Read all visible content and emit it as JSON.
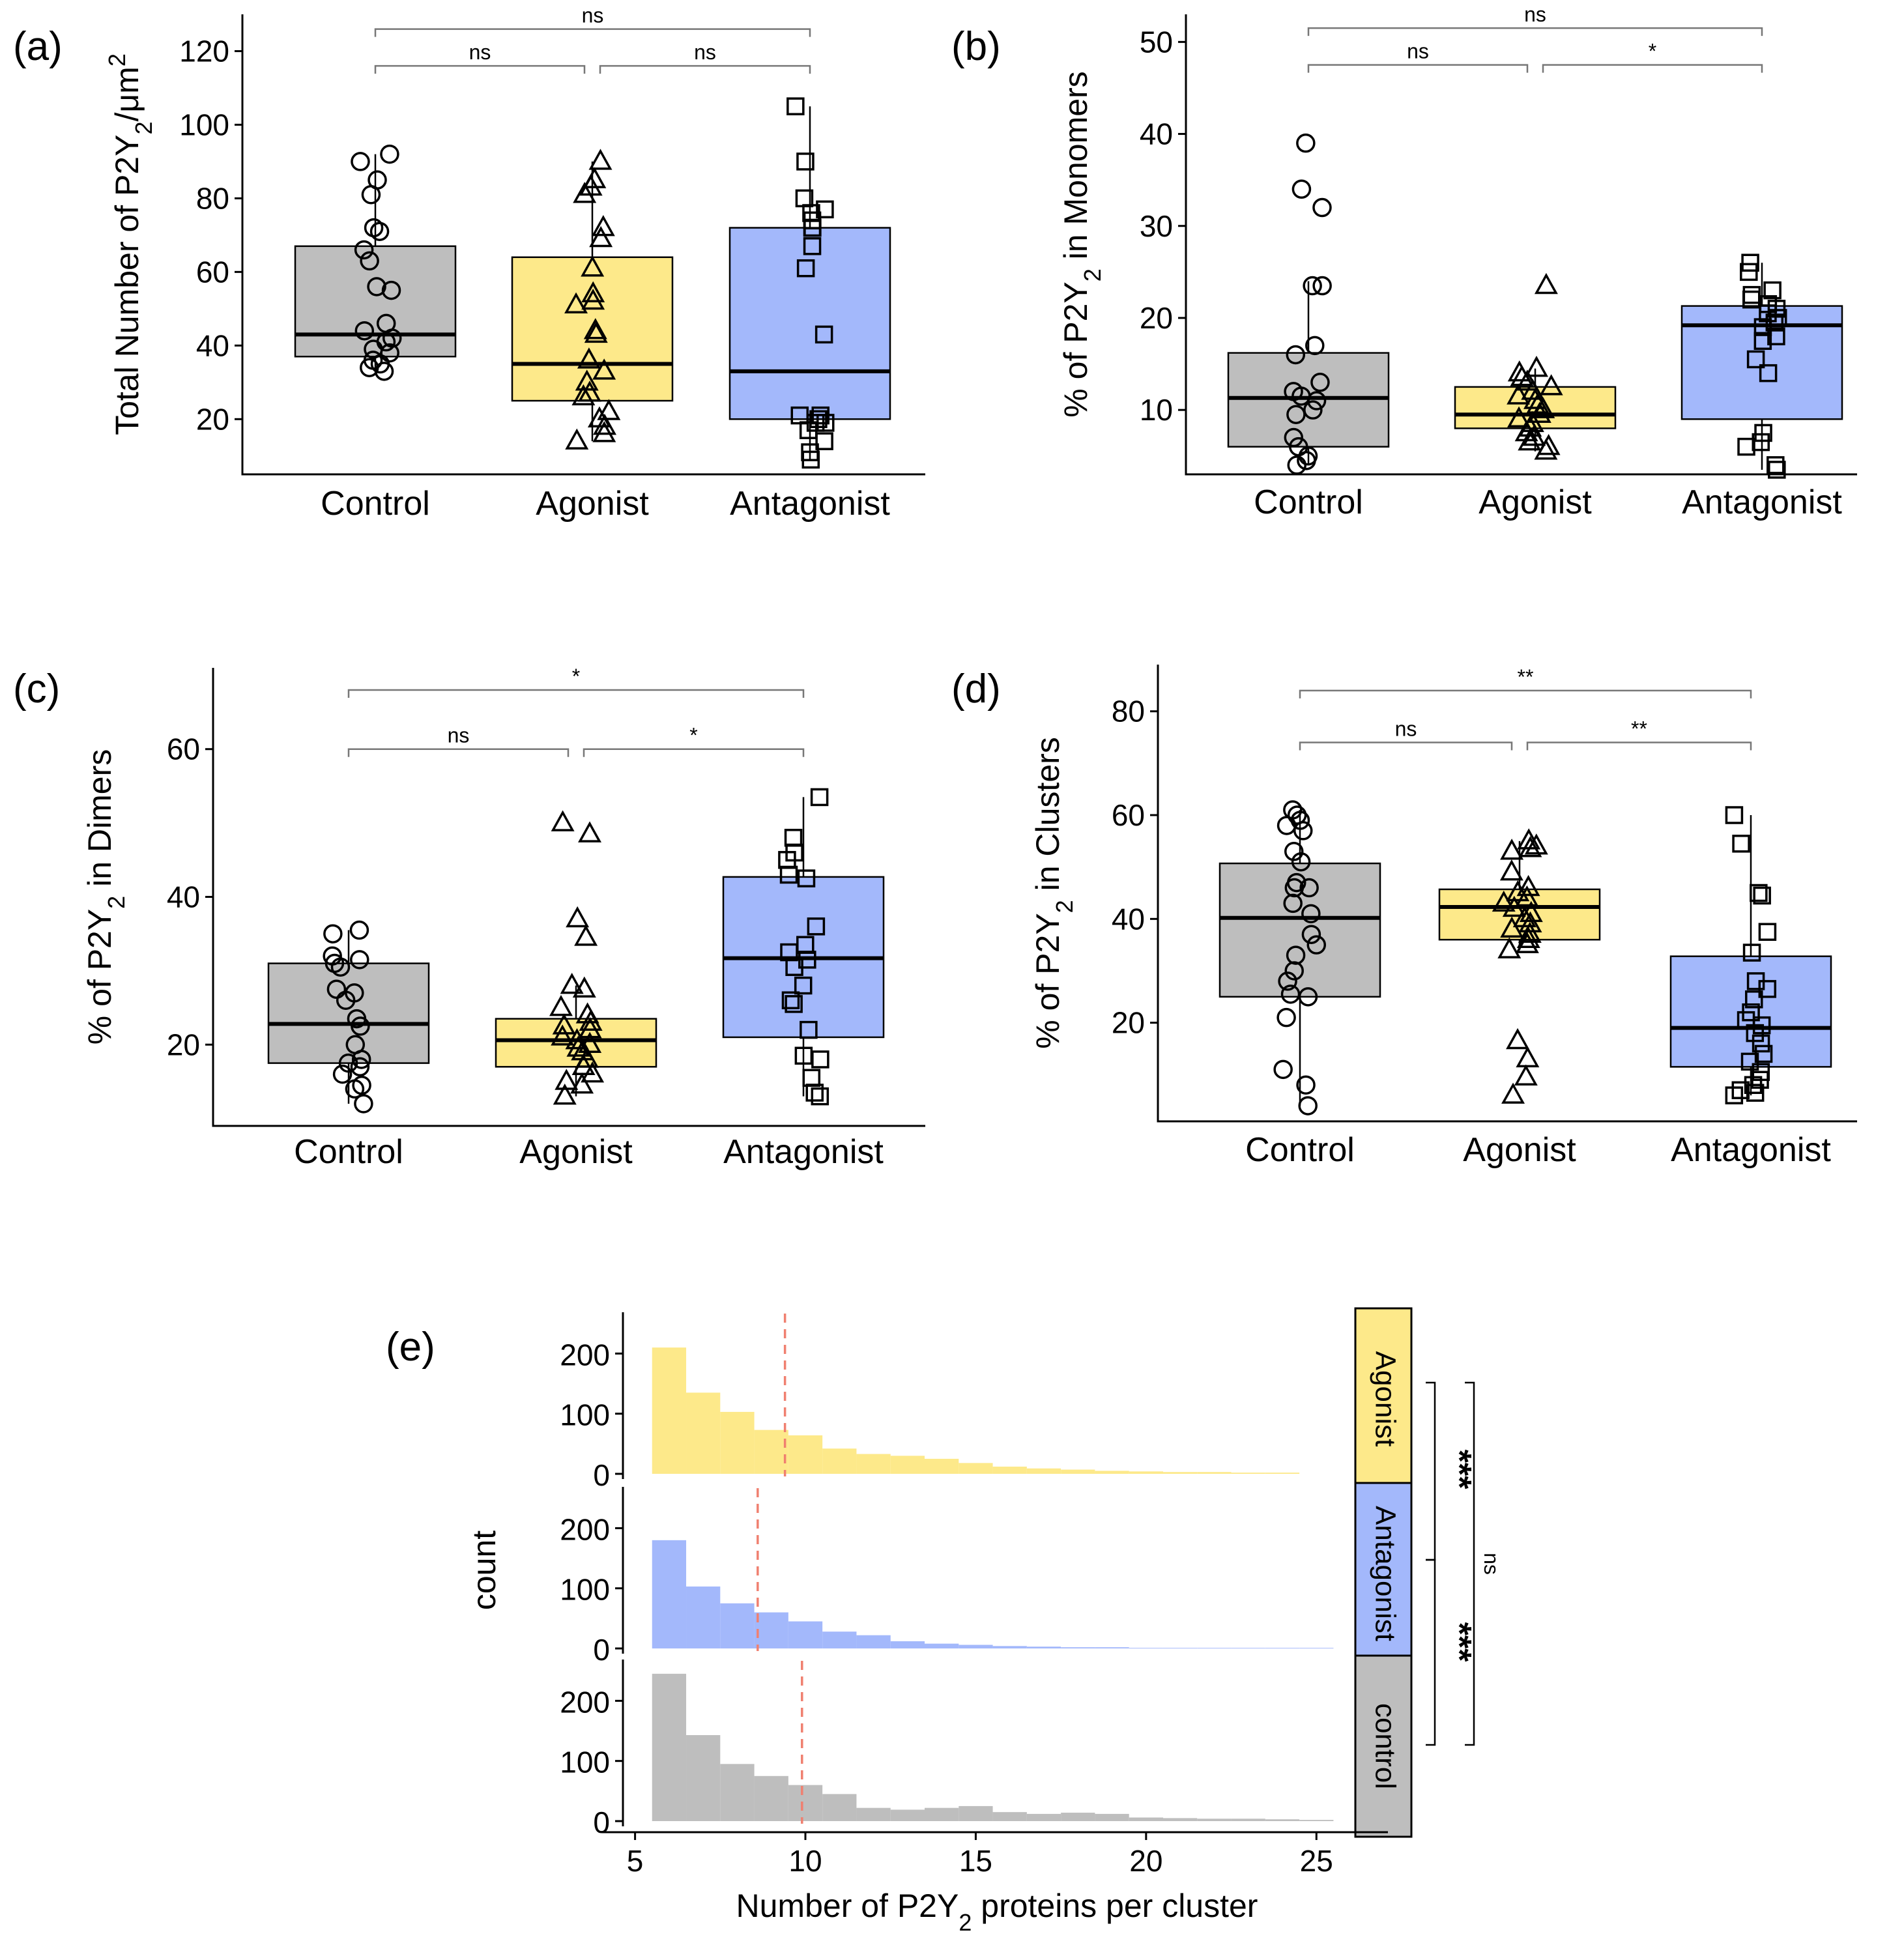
{
  "colors": {
    "control": "#bebebe",
    "agonist": "#fde98a",
    "antagonist": "#a3b8fb",
    "mean_line": "#f08070",
    "bracket": "#777777"
  },
  "boxpanels": [
    {
      "id": "a",
      "letter": "(a)",
      "ylabel": "Total Number of P2Y₂/μm²",
      "ylim": [
        5,
        130
      ],
      "yticks": [
        20,
        40,
        60,
        80,
        100,
        120
      ],
      "categories": [
        "Control",
        "Agonist",
        "Antagonist"
      ],
      "groups": [
        {
          "name": "Control",
          "color": "control",
          "shape": "circle",
          "stats": {
            "min": 33,
            "q1": 37,
            "median": 43,
            "q3": 67,
            "max": 92
          },
          "points": [
            92,
            90,
            85,
            81,
            72,
            71,
            66,
            63,
            56,
            55,
            46,
            44,
            42,
            41,
            39,
            38,
            36,
            35,
            34,
            33
          ]
        },
        {
          "name": "Agonist",
          "color": "agonist",
          "shape": "triangle",
          "stats": {
            "min": 14,
            "q1": 25,
            "median": 35,
            "q3": 64,
            "max": 90
          },
          "points": [
            90,
            85,
            83,
            81,
            72,
            69,
            61,
            54,
            52,
            51,
            44,
            43,
            36,
            33,
            30,
            27,
            26,
            22,
            20,
            18,
            16,
            14
          ]
        },
        {
          "name": "Antagonist",
          "color": "antagonist",
          "shape": "square",
          "stats": {
            "min": 9,
            "q1": 20,
            "median": 33,
            "q3": 72,
            "max": 105
          },
          "points": [
            105,
            90,
            80,
            77,
            76,
            74,
            72,
            72,
            67,
            61,
            43,
            21,
            21,
            20,
            19,
            19,
            17,
            14,
            11,
            9
          ]
        }
      ],
      "brackets": [
        {
          "from": 0,
          "to": 2,
          "label": "ns",
          "y": 126
        },
        {
          "from": 0,
          "to": 1,
          "label": "ns",
          "y": 116
        },
        {
          "from": 1,
          "to": 2,
          "label": "ns",
          "y": 116
        }
      ]
    },
    {
      "id": "b",
      "letter": "(b)",
      "ylabel": "% of P2Y₂ in Monomers",
      "ylim": [
        3,
        53
      ],
      "yticks": [
        10,
        20,
        30,
        40,
        50
      ],
      "categories": [
        "Control",
        "Agonist",
        "Antagonist"
      ],
      "groups": [
        {
          "name": "Control",
          "color": "control",
          "shape": "circle",
          "stats": {
            "min": 4,
            "q1": 6,
            "median": 11.3,
            "q3": 16.2,
            "max": 24
          },
          "points": [
            39,
            34,
            32,
            23.5,
            23.5,
            17,
            16,
            13,
            12,
            11.5,
            11,
            10,
            9.5,
            7,
            6,
            5,
            4.5,
            4
          ]
        },
        {
          "name": "Agonist",
          "color": "agonist",
          "shape": "triangle",
          "stats": {
            "min": 5.5,
            "q1": 8,
            "median": 9.5,
            "q3": 12.5,
            "max": 14.5
          },
          "points": [
            23.5,
            14.5,
            14,
            13.5,
            13,
            12.5,
            12,
            11.5,
            11,
            10.5,
            10,
            9.5,
            9,
            8.5,
            8,
            7.5,
            7,
            6.5,
            6,
            5.5
          ]
        },
        {
          "name": "Antagonist",
          "color": "antagonist",
          "shape": "square",
          "stats": {
            "min": 3.5,
            "q1": 9,
            "median": 19.2,
            "q3": 21.3,
            "max": 26
          },
          "points": [
            26,
            25,
            23,
            22.5,
            22,
            21.5,
            21,
            20.5,
            20,
            19.5,
            19,
            18,
            17.5,
            15.5,
            14,
            7.5,
            6.5,
            6,
            4,
            3.5
          ]
        }
      ],
      "brackets": [
        {
          "from": 0,
          "to": 2,
          "label": "ns",
          "y": 51.5
        },
        {
          "from": 0,
          "to": 1,
          "label": "ns",
          "y": 47.5
        },
        {
          "from": 1,
          "to": 2,
          "label": "*",
          "y": 47.5
        }
      ]
    },
    {
      "id": "c",
      "letter": "(c)",
      "ylabel": "% of P2Y₂ in Dimers",
      "ylim": [
        9,
        71
      ],
      "yticks": [
        20,
        40,
        60
      ],
      "categories": [
        "Control",
        "Agonist",
        "Antagonist"
      ],
      "groups": [
        {
          "name": "Control",
          "color": "control",
          "shape": "circle",
          "stats": {
            "min": 12,
            "q1": 17.5,
            "median": 22.8,
            "q3": 31,
            "max": 35.5
          },
          "points": [
            35.5,
            35,
            32,
            31.5,
            31,
            30.5,
            27.5,
            27,
            26,
            23.5,
            22.5,
            20,
            18,
            17.5,
            17,
            16,
            14.5,
            14,
            12
          ]
        },
        {
          "name": "Agonist",
          "color": "agonist",
          "shape": "triangle",
          "stats": {
            "min": 13,
            "q1": 17,
            "median": 20.6,
            "q3": 23.5,
            "max": 28
          },
          "points": [
            50,
            48.5,
            37,
            34.5,
            28,
            27.5,
            25,
            24,
            23,
            22.5,
            22,
            21,
            20.5,
            20,
            19.5,
            19,
            18,
            17,
            16,
            15,
            14.5,
            13
          ]
        },
        {
          "name": "Antagonist",
          "color": "antagonist",
          "shape": "square",
          "stats": {
            "min": 13,
            "q1": 21,
            "median": 31.7,
            "q3": 42.7,
            "max": 53.5
          },
          "points": [
            53.5,
            48,
            46,
            45,
            43,
            42.5,
            36,
            33.5,
            32.5,
            31.5,
            30.5,
            28,
            26,
            25.5,
            22,
            18.5,
            18,
            15.5,
            13.5,
            13
          ]
        }
      ],
      "brackets": [
        {
          "from": 0,
          "to": 2,
          "label": "*",
          "y": 68
        },
        {
          "from": 0,
          "to": 1,
          "label": "ns",
          "y": 60
        },
        {
          "from": 1,
          "to": 2,
          "label": "*",
          "y": 60
        }
      ]
    },
    {
      "id": "d",
      "letter": "(d)",
      "ylabel": "% of P2Y₂ in Clusters",
      "ylim": [
        1,
        89
      ],
      "yticks": [
        20,
        40,
        60,
        80
      ],
      "categories": [
        "Control",
        "Agonist",
        "Antagonist"
      ],
      "groups": [
        {
          "name": "Control",
          "color": "control",
          "shape": "circle",
          "stats": {
            "min": 4,
            "q1": 25,
            "median": 40.2,
            "q3": 50.7,
            "max": 61
          },
          "points": [
            61,
            60,
            59,
            58,
            57,
            53,
            51,
            47,
            46,
            46,
            43,
            41,
            37,
            35,
            33,
            30,
            28,
            25.5,
            25,
            21,
            11,
            8,
            4
          ]
        },
        {
          "name": "Agonist",
          "color": "agonist",
          "shape": "triangle",
          "stats": {
            "min": 34,
            "q1": 36,
            "median": 42.3,
            "q3": 45.7,
            "max": 55
          },
          "points": [
            55,
            54,
            53.5,
            53,
            49,
            46,
            45,
            44,
            43,
            42,
            41,
            40,
            39,
            38,
            37,
            36,
            35,
            34,
            16.5,
            13,
            9.5,
            6
          ]
        },
        {
          "name": "Antagonist",
          "color": "antagonist",
          "shape": "square",
          "stats": {
            "min": 6,
            "q1": 11.5,
            "median": 19,
            "q3": 32.8,
            "max": 60
          },
          "points": [
            60,
            54.5,
            45,
            44.5,
            37.5,
            33.5,
            28,
            26.5,
            24.5,
            22,
            20.5,
            19.5,
            18,
            16,
            14,
            12.5,
            10.5,
            9,
            8,
            7,
            6.5,
            6
          ]
        }
      ],
      "brackets": [
        {
          "from": 0,
          "to": 2,
          "label": "**",
          "y": 84
        },
        {
          "from": 0,
          "to": 1,
          "label": "ns",
          "y": 74
        },
        {
          "from": 1,
          "to": 2,
          "label": "**",
          "y": 74
        }
      ]
    }
  ],
  "chart_data": [
    {
      "type": "box",
      "panel": "(a)",
      "ylabel": "Total Number of P2Y₂/μm²",
      "categories": [
        "Control",
        "Agonist",
        "Antagonist"
      ],
      "medians": [
        43,
        35,
        33
      ],
      "ylim": [
        5,
        130
      ]
    },
    {
      "type": "box",
      "panel": "(b)",
      "ylabel": "% of P2Y₂ in Monomers",
      "categories": [
        "Control",
        "Agonist",
        "Antagonist"
      ],
      "medians": [
        11.3,
        9.5,
        19.2
      ],
      "ylim": [
        3,
        53
      ]
    },
    {
      "type": "box",
      "panel": "(c)",
      "ylabel": "% of P2Y₂ in Dimers",
      "categories": [
        "Control",
        "Agonist",
        "Antagonist"
      ],
      "medians": [
        22.8,
        20.6,
        31.7
      ],
      "ylim": [
        9,
        71
      ]
    },
    {
      "type": "box",
      "panel": "(d)",
      "ylabel": "% of P2Y₂ in Clusters",
      "categories": [
        "Control",
        "Agonist",
        "Antagonist"
      ],
      "medians": [
        40.2,
        42.3,
        19
      ],
      "ylim": [
        1,
        89
      ]
    },
    {
      "type": "histogram",
      "panel": "(e)",
      "xlabel": "Number of P2Y₂ proteins per cluster",
      "ylabel": "count",
      "xlim": [
        4.3,
        26.2
      ],
      "xticks": [
        5,
        10,
        15,
        20,
        25
      ],
      "yticks": [
        0,
        100,
        200
      ],
      "bin_width": 1,
      "series": [
        {
          "name": "Agonist",
          "mean": 9.4,
          "bins_start": 5.5,
          "counts": [
            210,
            135,
            103,
            73,
            64,
            42,
            33,
            30,
            25,
            18,
            12,
            9,
            7,
            5,
            4,
            3,
            3,
            2,
            2
          ]
        },
        {
          "name": "Antagonist",
          "mean": 8.6,
          "bins_start": 5.5,
          "counts": [
            180,
            103,
            75,
            60,
            45,
            28,
            22,
            12,
            8,
            6,
            4,
            3,
            2,
            2,
            1,
            1,
            1,
            1,
            1,
            1
          ]
        },
        {
          "name": "control",
          "mean": 9.9,
          "bins_start": 5.5,
          "counts": [
            245,
            143,
            95,
            75,
            60,
            45,
            22,
            19,
            22,
            25,
            15,
            12,
            14,
            12,
            6,
            5,
            4,
            4,
            3,
            2
          ]
        }
      ]
    }
  ],
  "hist": {
    "letter": "(e)",
    "xlabel": "Number of P2Y₂ proteins per cluster",
    "ylabel": "count",
    "yticks": [
      0,
      100,
      200
    ],
    "xticks": [
      5,
      10,
      15,
      20,
      25
    ],
    "facet_order": [
      "Agonist",
      "Antagonist",
      "control"
    ],
    "facet_colors": [
      "agonist",
      "antagonist",
      "control"
    ],
    "comparisons": [
      {
        "between": [
          "Agonist",
          "Antagonist"
        ],
        "label": "***"
      },
      {
        "between": [
          "Antagonist",
          "control"
        ],
        "label": "***"
      },
      {
        "between": [
          "Agonist",
          "control"
        ],
        "label": "ns"
      }
    ]
  }
}
